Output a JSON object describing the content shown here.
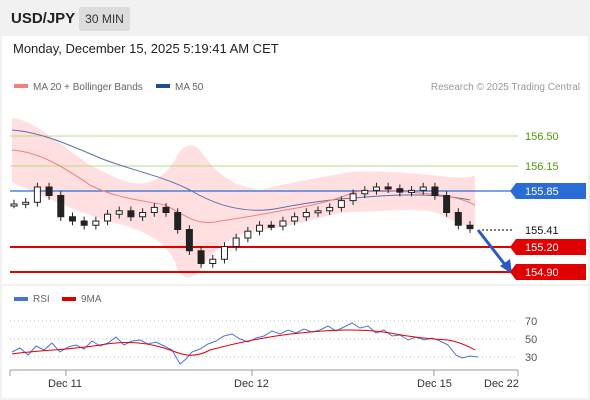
{
  "header": {
    "symbol": "USD/JPY",
    "timeframe": "30 MIN",
    "datetime": "Monday, December 15, 2025 5:19:41 AM CET"
  },
  "legend": {
    "ma20_label": "MA 20 + Bollinger Bands",
    "ma50_label": "MA 50",
    "credit": "Research © 2025 Trading Central",
    "colors": {
      "ma20": "#f08080",
      "ma50": "#1f4e8c"
    }
  },
  "price_levels": [
    {
      "label": "156.50",
      "kind": "resistance-text",
      "color": "#4e9a06"
    },
    {
      "label": "156.15",
      "kind": "resistance-text",
      "color": "#4e9a06"
    },
    {
      "label": "155.85",
      "kind": "pivot",
      "color": "#2a6cd6"
    },
    {
      "label": "155.41",
      "kind": "last-price",
      "color": "#000000"
    },
    {
      "label": "155.20",
      "kind": "support",
      "color": "#e00000"
    },
    {
      "label": "154.90",
      "kind": "support",
      "color": "#e00000"
    }
  ],
  "rsi_panel": {
    "rsi_label": "RSI",
    "ma_label": "9MA",
    "levels": [
      "70",
      "50",
      "30"
    ],
    "colors": {
      "rsi": "#4a72d6",
      "ma": "#e00000"
    }
  },
  "xaxis": {
    "labels": [
      "Dec 11",
      "Dec 12",
      "Dec 15",
      "Dec 22"
    ]
  },
  "chart_data": {
    "type": "candlestick",
    "approx_close": [
      155.7,
      155.72,
      155.9,
      155.8,
      155.55,
      155.5,
      155.45,
      155.5,
      155.58,
      155.62,
      155.55,
      155.6,
      155.66,
      155.6,
      155.4,
      155.15,
      155.0,
      155.05,
      155.2,
      155.3,
      155.38,
      155.45,
      155.44,
      155.5,
      155.55,
      155.6,
      155.62,
      155.66,
      155.74,
      155.82,
      155.86,
      155.9,
      155.88,
      155.84,
      155.86,
      155.9,
      155.8,
      155.6,
      155.45,
      155.41
    ],
    "rsi_approx": [
      38,
      40,
      45,
      55,
      48,
      42,
      40,
      44,
      48,
      52,
      54,
      50,
      46,
      40,
      36,
      32,
      35,
      40,
      45,
      48,
      52,
      54,
      56,
      58,
      60,
      62,
      60,
      58,
      60,
      62,
      64,
      65,
      63,
      60,
      58,
      54,
      50,
      44,
      34,
      30
    ]
  }
}
